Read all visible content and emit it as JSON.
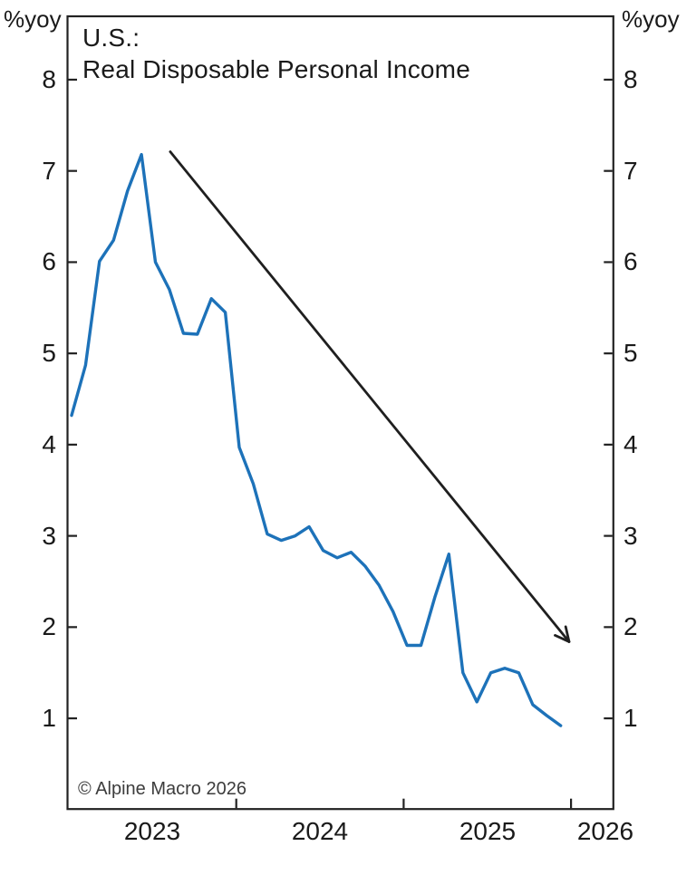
{
  "page": {
    "background": "#ffffff",
    "text_color": "#1a1a1a"
  },
  "chart_data": {
    "type": "line",
    "title_line1": "U.S.:",
    "title_line2": "Real Disposable Personal Income",
    "unit_label_left": "%yoy",
    "unit_label_right": "%yoy",
    "copyright": "© Alpine Macro 2026",
    "axis_color": "#222222",
    "grid": "off",
    "legend": "none",
    "ylim": [
      0,
      8.7
    ],
    "y_ticks": [
      8,
      7,
      6,
      5,
      4,
      3,
      2,
      1
    ],
    "x_tick_labels": [
      "2023",
      "2024",
      "2025",
      "2026"
    ],
    "x": [
      "2023-01",
      "2023-02",
      "2023-03",
      "2023-04",
      "2023-05",
      "2023-06",
      "2023-07",
      "2023-08",
      "2023-09",
      "2023-10",
      "2023-11",
      "2023-12",
      "2024-01",
      "2024-02",
      "2024-03",
      "2024-04",
      "2024-05",
      "2024-06",
      "2024-07",
      "2024-08",
      "2024-09",
      "2024-10",
      "2024-11",
      "2024-12",
      "2025-01",
      "2025-02",
      "2025-03",
      "2025-04",
      "2025-05",
      "2025-06",
      "2025-07",
      "2025-08",
      "2025-09",
      "2025-10",
      "2025-11",
      "2025-12"
    ],
    "series": [
      {
        "name": "Real Disposable Personal Income (%yoy)",
        "color": "#1d72b9",
        "values": [
          4.32,
          4.87,
          6.01,
          6.24,
          6.78,
          7.18,
          6.0,
          5.7,
          5.22,
          5.21,
          5.6,
          5.45,
          3.97,
          3.57,
          3.02,
          2.95,
          3.0,
          3.1,
          2.84,
          2.76,
          2.82,
          2.67,
          2.46,
          2.17,
          1.8,
          1.8,
          2.33,
          2.8,
          1.5,
          1.18,
          1.5,
          1.55,
          1.5,
          1.15,
          1.03,
          0.92
        ]
      }
    ],
    "trend_arrow": {
      "description": "downward trend annotation arrow",
      "color": "#1f1f1f",
      "from_month_index": 7.06,
      "from_value": 7.21,
      "to_month_index": 35.6,
      "to_value": 1.84
    }
  }
}
